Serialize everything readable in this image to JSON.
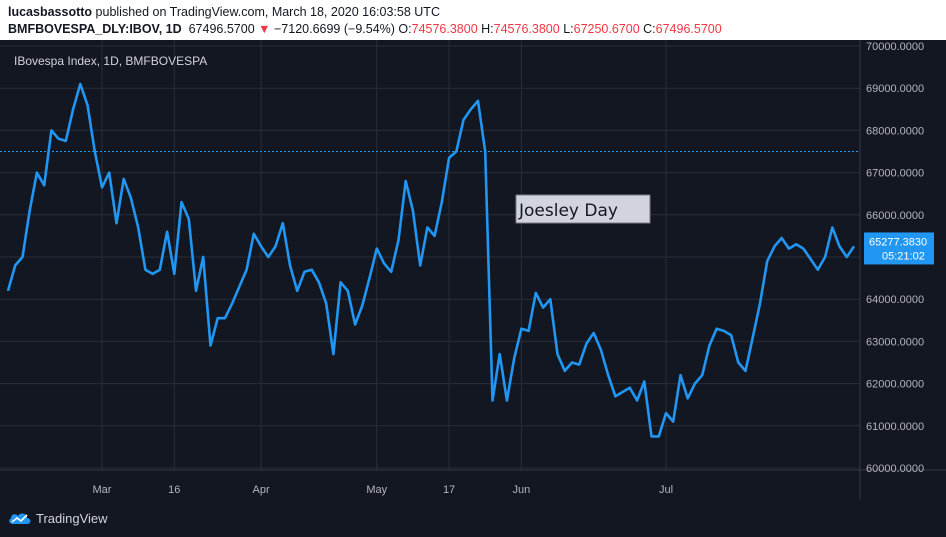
{
  "header": {
    "author": "lucasbassotto",
    "published_text": "published on TradingView.com, March 18, 2020 16:03:58 UTC",
    "symbol": "BMFBOVESPA_DLY:IBOV, 1D",
    "last": "67496.5700",
    "change_arrow": "▼",
    "change": "−7120.6699 (−9.54%)",
    "o_label": "O:",
    "o_value": "74576.3800",
    "h_label": "H:",
    "h_value": "74576.3800",
    "l_label": "L:",
    "l_value": "67250.6700",
    "c_label": "C:",
    "c_value": "67496.5700"
  },
  "footer": {
    "logo_text": "TradingView",
    "logo_icon": "tradingview-cloud-icon"
  },
  "colors": {
    "background": "#131722",
    "line": "#2196f3",
    "grid": "#2a2e39",
    "tag": "#2196f3",
    "down": "#f23645"
  },
  "chart_data": {
    "type": "line",
    "legend": "IBovespa Index, 1D, BMFBOVESPA",
    "annotation": "Joesley Day",
    "price_tag": "65277.3830",
    "countdown": "05:21:02",
    "y_ticks": [
      "60000.0000",
      "61000.0000",
      "62000.0000",
      "63000.0000",
      "64000.0000",
      "65000.0000",
      "66000.0000",
      "67000.0000",
      "68000.0000",
      "69000.0000",
      "70000.0000"
    ],
    "y_tick_values": [
      60000,
      61000,
      62000,
      63000,
      64000,
      65000,
      66000,
      67000,
      68000,
      69000,
      70000
    ],
    "x_ticks": [
      "Mar",
      "16",
      "Apr",
      "May",
      "17",
      "Jun",
      "Jul"
    ],
    "x_tick_index": [
      13,
      23,
      35,
      51,
      61,
      71,
      91
    ],
    "reference_line": 67500,
    "ylim": [
      59900,
      70100
    ],
    "xlim": [
      0,
      106
    ],
    "grid": true,
    "series": [
      {
        "values": [
          64200,
          64800,
          65000,
          66100,
          67000,
          66700,
          68000,
          67800,
          67750,
          68500,
          69100,
          68600,
          67500,
          66650,
          67000,
          65800,
          66850,
          66400,
          65700,
          64700,
          64600,
          64700,
          65600,
          64600,
          66300,
          65900,
          64200,
          65000,
          62900,
          63550,
          63550,
          63900,
          64300,
          64700,
          65550,
          65250,
          65000,
          65250,
          65800,
          64800,
          64200,
          64650,
          64700,
          64400,
          63900,
          62700,
          64400,
          64200,
          63400,
          63850,
          64500,
          65200,
          64850,
          64650,
          65400,
          66800,
          66100,
          64800,
          65700,
          65500,
          66300,
          67350,
          67500,
          68250,
          68500,
          68700,
          67500,
          61600,
          62700,
          61600,
          62600,
          63300,
          63250,
          64150,
          63800,
          64000,
          62700,
          62300,
          62500,
          62450,
          62950,
          63200,
          62800,
          62200,
          61700,
          61800,
          61900,
          61600,
          62050,
          60750,
          60750,
          61300,
          61100,
          62200,
          61650,
          62000,
          62200,
          62900,
          63300,
          63250,
          63150,
          62500,
          62300,
          63100,
          63900,
          64900,
          65250,
          65450,
          65200,
          65300,
          65200,
          64950,
          64700,
          65000,
          65700,
          65250,
          65000,
          65250
        ]
      }
    ]
  }
}
